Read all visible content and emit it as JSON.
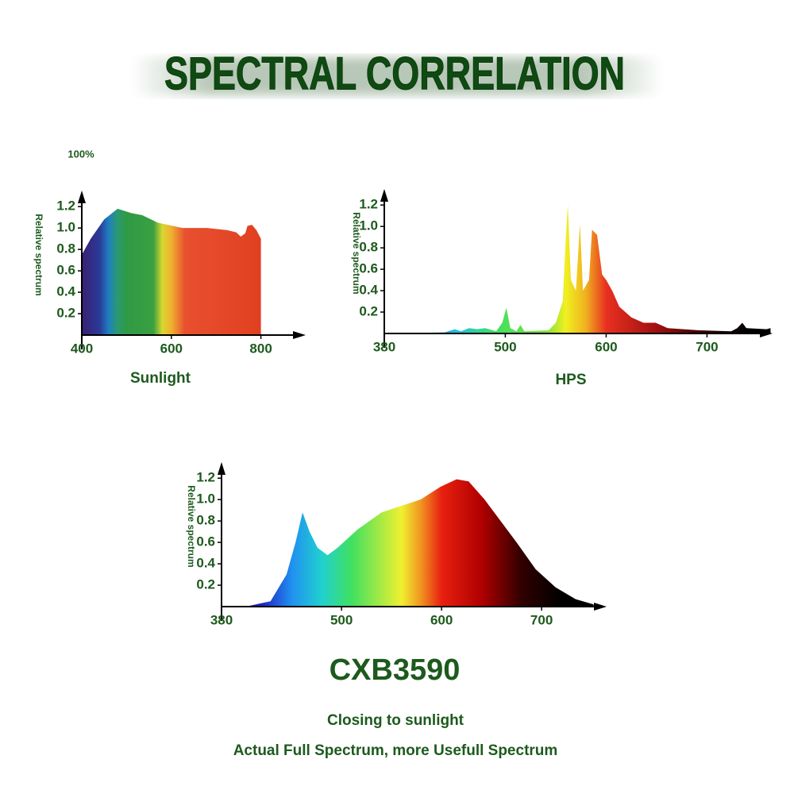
{
  "title": "SPECTRAL CORRELATION",
  "chart_data": [
    {
      "type": "area",
      "title": "Sunlight",
      "annotation": "100%",
      "y_label": "Relative spectrum",
      "x": [
        400,
        420,
        450,
        480,
        510,
        535,
        570,
        625,
        680,
        725,
        745,
        755,
        765,
        770,
        780,
        790,
        800
      ],
      "values": [
        0.75,
        0.9,
        1.08,
        1.18,
        1.14,
        1.12,
        1.05,
        1.0,
        1.0,
        0.98,
        0.96,
        0.92,
        0.95,
        1.02,
        1.03,
        0.98,
        0.9
      ],
      "xlim": [
        400,
        900
      ],
      "ylim": [
        0,
        1.35
      ],
      "xticks": [
        400,
        600,
        800
      ],
      "yticks": [
        0.2,
        0.4,
        0.6,
        0.8,
        {
          "value": 1,
          "label": "1.0"
        },
        1.2
      ]
    },
    {
      "type": "area",
      "title": "HPS",
      "y_label": "Relative spectrum",
      "x": [
        380,
        440,
        450,
        456,
        464,
        472,
        480,
        491,
        497,
        501,
        505,
        511,
        515,
        519,
        543,
        550,
        557,
        560,
        562,
        565,
        570,
        574,
        577,
        583,
        586,
        591,
        596,
        600,
        606,
        613,
        625,
        637,
        649,
        661,
        692,
        724,
        730,
        735,
        739,
        759,
        763
      ],
      "values": [
        0,
        0.01,
        0.04,
        0.02,
        0.05,
        0.04,
        0.05,
        0.02,
        0.1,
        0.24,
        0.05,
        0.02,
        0.08,
        0.02,
        0.03,
        0.1,
        0.3,
        0.9,
        1.2,
        0.5,
        0.4,
        1.02,
        0.4,
        0.5,
        0.97,
        0.92,
        0.55,
        0.5,
        0.4,
        0.25,
        0.15,
        0.1,
        0.1,
        0.05,
        0.03,
        0.02,
        0.05,
        0.1,
        0.05,
        0.04,
        0.05
      ],
      "xlim": [
        380,
        765
      ],
      "ylim": [
        0,
        1.35
      ],
      "xticks": [
        380,
        500,
        600,
        700
      ],
      "yticks": [
        0.2,
        0.4,
        0.6,
        0.8,
        {
          "value": 1,
          "label": "1.0"
        },
        1.2
      ]
    },
    {
      "type": "area",
      "title": "CXB3590",
      "y_label": "Relative spectrum",
      "x": [
        404,
        429,
        445,
        454,
        461,
        468,
        476,
        486,
        496,
        516,
        540,
        556,
        579,
        599,
        615,
        627,
        643,
        659,
        675,
        694,
        714,
        734,
        752
      ],
      "values": [
        0,
        0.05,
        0.3,
        0.6,
        0.88,
        0.7,
        0.55,
        0.48,
        0.55,
        0.72,
        0.88,
        0.93,
        1.0,
        1.12,
        1.19,
        1.17,
        1.0,
        0.8,
        0.6,
        0.35,
        0.18,
        0.07,
        0.02
      ],
      "xlim": [
        380,
        765
      ],
      "ylim": [
        0,
        1.35
      ],
      "xticks": [
        380,
        500,
        600,
        700
      ],
      "yticks": [
        0.2,
        0.4,
        0.6,
        0.8,
        {
          "value": 1,
          "label": "1.0"
        },
        1.2
      ]
    }
  ],
  "captions": [
    "Closing to sunlight",
    "Actual Full Spectrum, more Usefull Spectrum"
  ]
}
